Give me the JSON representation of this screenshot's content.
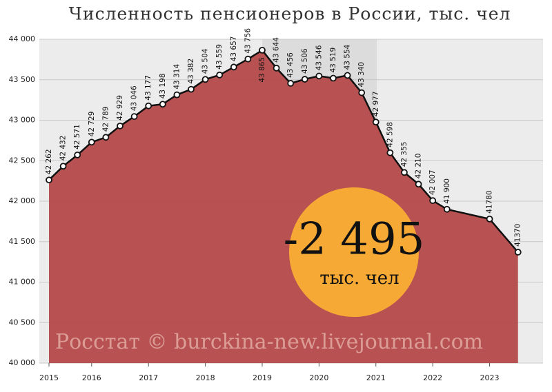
{
  "chart_data": {
    "type": "area",
    "title": "Численность пенсионеров в России, тыс. чел",
    "x": [
      0,
      1,
      2,
      3,
      4,
      5,
      6,
      7,
      8,
      9,
      10,
      11,
      12,
      13,
      14,
      15,
      16,
      17,
      18,
      19,
      20,
      21,
      22,
      23,
      24,
      25,
      26,
      27,
      28,
      31,
      33
    ],
    "values": [
      42262,
      42432,
      42571,
      42729,
      42789,
      42929,
      43046,
      43177,
      43198,
      43314,
      43382,
      43504,
      43559,
      43657,
      43756,
      43865,
      43644,
      43456,
      43506,
      43546,
      43519,
      43554,
      43340,
      42977,
      42598,
      42355,
      42210,
      42007,
      41900,
      41780,
      41370
    ],
    "value_labels": [
      "42 262",
      "42 432",
      "42 571",
      "42 729",
      "42 789",
      "42 929",
      "43 046",
      "43 177",
      "43 198",
      "43 314",
      "43 382",
      "43 504",
      "43 559",
      "43 657",
      "43 756",
      "43 865",
      "43 644",
      "43 456",
      "43 506",
      "43 546",
      "43 519",
      "43 554",
      "43 340",
      "42 977",
      "42 598",
      "42 355",
      "42 210",
      "42 007",
      "41 900",
      "41780",
      "41370"
    ],
    "color": "#b54a4a",
    "xlim": [
      -0.68,
      34.76
    ],
    "xticks": [
      {
        "value": 0,
        "label": "2015"
      },
      {
        "value": 3,
        "label": "2016"
      },
      {
        "value": 7,
        "label": "2017"
      },
      {
        "value": 11,
        "label": "2018"
      },
      {
        "value": 15,
        "label": "2019"
      },
      {
        "value": 19,
        "label": "2020"
      },
      {
        "value": 23,
        "label": "2021"
      },
      {
        "value": 27,
        "label": "2022"
      },
      {
        "value": 31,
        "label": "2023"
      }
    ],
    "ylim": [
      40000,
      44000
    ],
    "yticks": [
      {
        "value": 40000,
        "label": "40 000"
      },
      {
        "value": 40500,
        "label": "40 500"
      },
      {
        "value": 41000,
        "label": "41 000"
      },
      {
        "value": 41500,
        "label": "41 500"
      },
      {
        "value": 42000,
        "label": "42 000"
      },
      {
        "value": 42500,
        "label": "42 500"
      },
      {
        "value": 43000,
        "label": "43 000"
      },
      {
        "value": 43500,
        "label": "43 500"
      },
      {
        "value": 44000,
        "label": "44 000"
      }
    ],
    "grid": true,
    "annotation": {
      "value": "-2 495",
      "unit": "тыс. чел"
    },
    "source": "Росстат © burckina-new.livejournal.com"
  }
}
